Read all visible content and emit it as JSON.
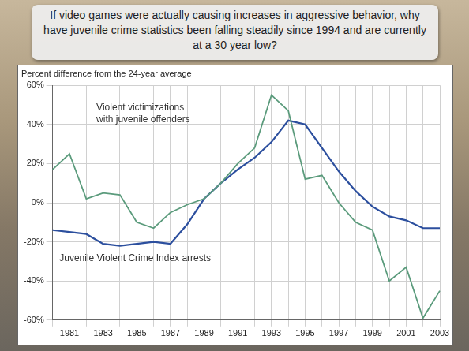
{
  "chart_data": {
    "type": "line",
    "title": "If video games were actually causing increases in aggressive behavior, why have juvenile crime statistics been falling steadily since 1994 and are currently at a 30 year low?",
    "y_label": "Percent difference from the 24-year average",
    "categories": [
      null,
      "1981",
      null,
      "1983",
      null,
      "1985",
      null,
      "1987",
      null,
      "1989",
      null,
      "1991",
      null,
      "1993",
      null,
      "1995",
      null,
      "1997",
      null,
      "1999",
      null,
      "2001",
      null,
      "2003"
    ],
    "series": [
      {
        "name": "Violent victimizations with juvenile offenders",
        "color": "#5b9b7c",
        "values": [
          17,
          25,
          2,
          5,
          4,
          -10,
          -13,
          -5,
          -1,
          2,
          10,
          20,
          28,
          55,
          47,
          12,
          14,
          0,
          -10,
          -14,
          -40,
          -33,
          -59,
          -45
        ]
      },
      {
        "name": "Juvenile Violent Crime Index arrests",
        "color": "#2c4f9e",
        "values": [
          -14,
          -15,
          -16,
          -21,
          -22,
          -21,
          -20,
          -21,
          -11,
          2,
          10,
          17,
          23,
          31,
          42,
          40,
          28,
          16,
          6,
          -2,
          -7,
          -9,
          -13,
          -13
        ]
      }
    ],
    "ylim": [
      -60,
      60
    ],
    "yticks": [
      {
        "value": -60,
        "label": "-60%"
      },
      {
        "value": -40,
        "label": "-40%"
      },
      {
        "value": -20,
        "label": "-20%"
      },
      {
        "value": 0,
        "label": "0%"
      },
      {
        "value": 20,
        "label": "20%"
      },
      {
        "value": 40,
        "label": "40%"
      },
      {
        "value": 60,
        "label": "60%"
      }
    ],
    "grid": true
  }
}
